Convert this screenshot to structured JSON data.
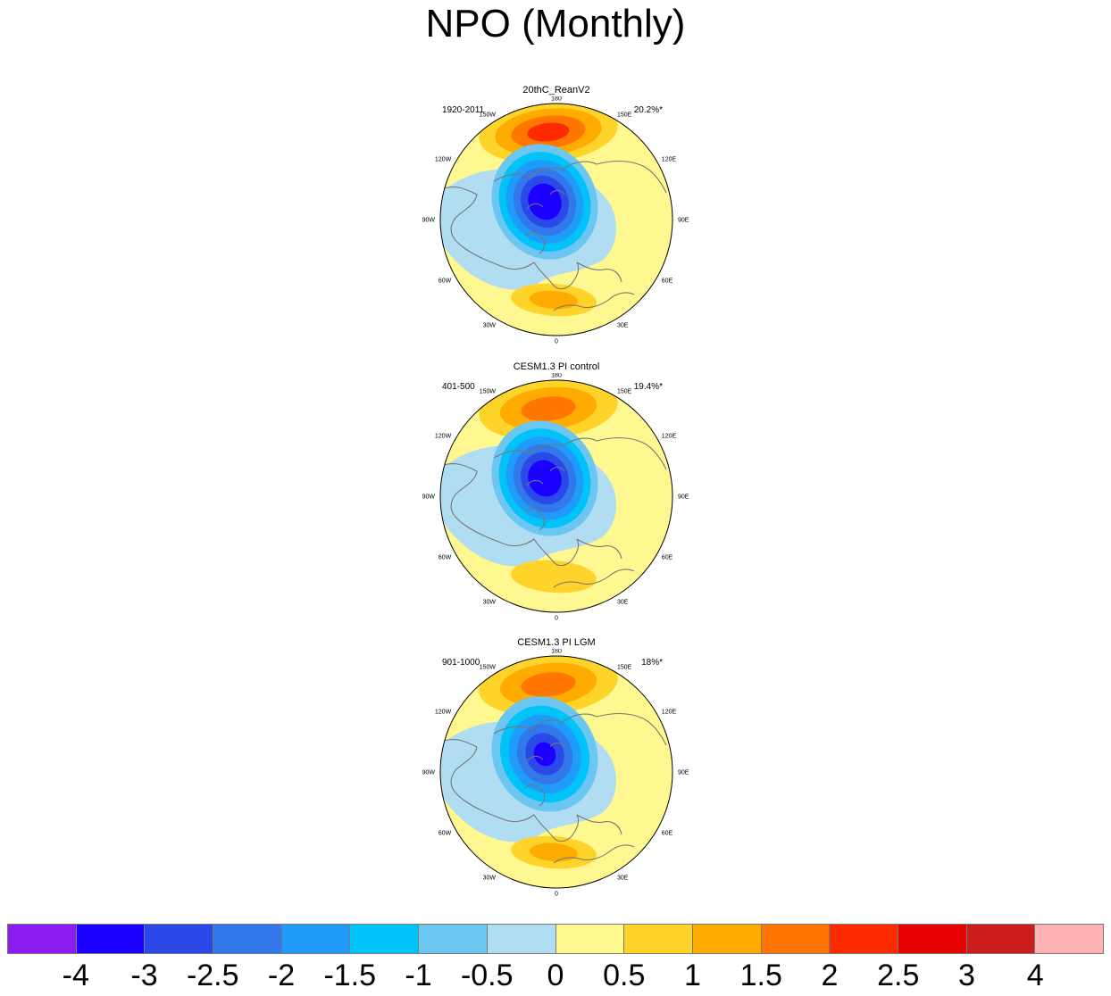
{
  "figure": {
    "title": "NPO (Monthly)"
  },
  "panels": [
    {
      "title": "20thC_ReanV2",
      "years": "1920-2011",
      "percent": "20.2%*",
      "pattern": {
        "pacific_high": 2.0,
        "arctic_low": -3.5,
        "atlantic_high": 1.0
      }
    },
    {
      "title": "CESM1.3 PI control",
      "years": "401-500",
      "percent": "19.4%*",
      "pattern": {
        "pacific_high": 1.5,
        "arctic_low": -3.5,
        "atlantic_high": 0.5
      }
    },
    {
      "title": "CESM1.3 PI LGM",
      "years": "901-1000",
      "percent": "18%*",
      "pattern": {
        "pacific_high": 1.5,
        "arctic_low": -3.0,
        "atlantic_high": 1.0
      }
    }
  ],
  "map_labels": {
    "top": "180",
    "bottom": "0",
    "left": "90W",
    "right": "90E",
    "ul1": "150W",
    "ul2": "120W",
    "ur1": "150E",
    "ur2": "120E",
    "ll1": "60W",
    "ll2": "30W",
    "lr1": "60E",
    "lr2": "30E"
  },
  "colorbar": {
    "colors": [
      "#8b1cf2",
      "#1c00ff",
      "#2b48e8",
      "#3278eb",
      "#1f9bf9",
      "#00c3fa",
      "#6cc6f2",
      "#b1ddf2",
      "#fff890",
      "#ffd42a",
      "#ffab00",
      "#ff7700",
      "#ff2b00",
      "#e50000",
      "#cc1d1d",
      "#ffb3b3"
    ],
    "labels": [
      "-4",
      "-3",
      "-2.5",
      "-2",
      "-1.5",
      "-1",
      "-0.5",
      "0",
      "0.5",
      "1",
      "1.5",
      "2",
      "2.5",
      "3",
      "4"
    ]
  }
}
